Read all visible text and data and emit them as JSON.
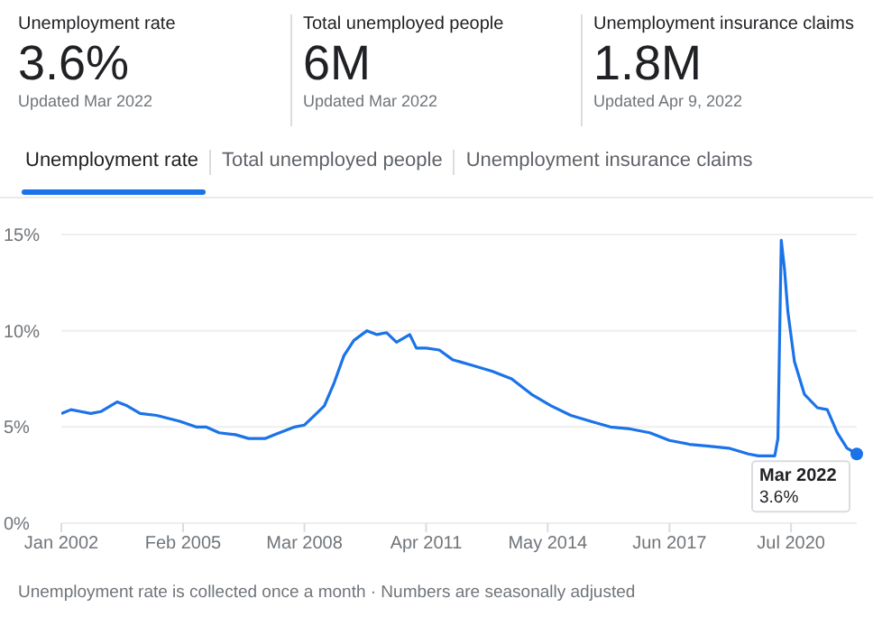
{
  "chart_data": {
    "type": "line",
    "annotations": [
      "Unemployment rate",
      "3.6%",
      "Updated Mar 2022",
      "Total unemployed people",
      "6M",
      "Updated Mar 2022",
      "Unemployment insurance claims",
      "1.8M",
      "Updated Apr 9, 2022",
      "Unemployment rate",
      "Total unemployed people",
      "Unemployment insurance claims",
      "Unemployment rate is collected once a month · Numbers are seasonally adjusted",
      {
        "text": "Mar 2022\n3.6%",
        "x": "2022-03",
        "y": 3.6
      }
    ],
    "x": [
      "2002-01",
      "2002-04",
      "2002-07",
      "2002-10",
      "2003-01",
      "2003-06",
      "2003-09",
      "2004-01",
      "2004-06",
      "2005-01",
      "2005-06",
      "2005-09",
      "2006-01",
      "2006-06",
      "2006-10",
      "2007-03",
      "2007-06",
      "2007-12",
      "2008-03",
      "2008-06",
      "2008-09",
      "2008-12",
      "2009-03",
      "2009-06",
      "2009-10",
      "2010-01",
      "2010-04",
      "2010-07",
      "2010-11",
      "2011-01",
      "2011-04",
      "2011-08",
      "2011-12",
      "2012-06",
      "2012-12",
      "2013-06",
      "2013-12",
      "2014-06",
      "2014-12",
      "2015-06",
      "2015-12",
      "2016-06",
      "2016-12",
      "2017-06",
      "2017-12",
      "2018-06",
      "2018-12",
      "2019-06",
      "2019-09",
      "2020-02",
      "2020-03",
      "2020-04",
      "2020-05",
      "2020-06",
      "2020-08",
      "2020-11",
      "2021-03",
      "2021-06",
      "2021-09",
      "2021-12",
      "2022-03"
    ],
    "series": [
      {
        "color": "#1a73e8",
        "values": [
          5.7,
          5.9,
          5.8,
          5.7,
          5.8,
          6.3,
          6.1,
          5.7,
          5.6,
          5.3,
          5.0,
          5.0,
          4.7,
          4.6,
          4.4,
          4.4,
          4.6,
          5.0,
          5.1,
          5.6,
          6.1,
          7.3,
          8.7,
          9.5,
          10.0,
          9.8,
          9.9,
          9.4,
          9.8,
          9.1,
          9.1,
          9.0,
          8.5,
          8.2,
          7.9,
          7.5,
          6.7,
          6.1,
          5.6,
          5.3,
          5.0,
          4.9,
          4.7,
          4.3,
          4.1,
          4.0,
          3.9,
          3.6,
          3.5,
          3.5,
          4.4,
          14.7,
          13.2,
          11.0,
          8.4,
          6.7,
          6.0,
          5.9,
          4.7,
          3.9,
          3.6
        ]
      }
    ],
    "xlim": [
      "2002-01",
      "2022-03"
    ],
    "xticks": [
      {
        "value": "2002-01",
        "label": "Jan 2002"
      },
      {
        "value": "2005-02",
        "label": "Feb 2005"
      },
      {
        "value": "2008-03",
        "label": "Mar 2008"
      },
      {
        "value": "2011-04",
        "label": "Apr 2011"
      },
      {
        "value": "2014-05",
        "label": "May 2014"
      },
      {
        "value": "2017-06",
        "label": "Jun 2017"
      },
      {
        "value": "2020-07",
        "label": "Jul 2020"
      }
    ],
    "ylim": [
      0,
      15
    ],
    "yticks": [
      {
        "value": 0,
        "label": "0%"
      },
      {
        "value": 5,
        "label": "5%"
      },
      {
        "value": 10,
        "label": "10%"
      },
      {
        "value": 15,
        "label": "15%"
      }
    ],
    "grid": "y",
    "marker": "none",
    "line_style": "solid",
    "legend": false
  }
}
